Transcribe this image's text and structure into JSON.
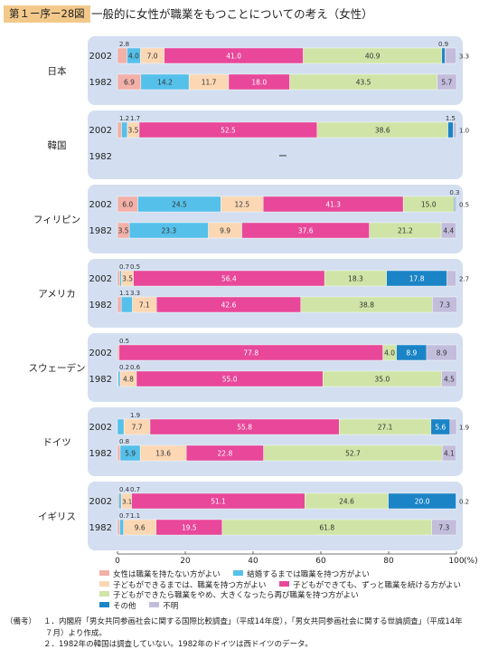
{
  "header": {
    "figure_label": "第１ー序ー28図",
    "title": "一般的に女性が職業をもつことについての考え（女性）"
  },
  "chart_data": {
    "type": "bar",
    "orientation": "horizontal-stacked-100",
    "categories_legend": [
      "女性は職業を持たない方がよい",
      "結婚するまでは職業を持つ方がよい",
      "子どもができるまでは、職業を持つ方がよい",
      "子どもができても、ずっと職業を続ける方がよい",
      "子どもができたら職業をやめ、大きくなったら再び職業を持つ方がよい",
      "その他",
      "不明"
    ],
    "colors": [
      "#f2b0a8",
      "#55c0ea",
      "#fbd7b4",
      "#e8479a",
      "#cfe4a6",
      "#1b84c6",
      "#c3bddc"
    ],
    "xlim": [
      0,
      100
    ],
    "xticks": [
      "0",
      "20",
      "40",
      "60",
      "80",
      "100"
    ],
    "xunit": "(%)",
    "groups": [
      {
        "country": "日本",
        "bars": [
          {
            "year": "2002",
            "values": [
              2.8,
              4.0,
              7.0,
              41.0,
              40.9,
              0.9,
              3.3
            ],
            "labels": [
              "2.8",
              "4.0",
              "7.0",
              "41.0",
              "40.9",
              "0.9",
              "3.3"
            ]
          },
          {
            "year": "1982",
            "values": [
              6.9,
              14.2,
              11.7,
              18.0,
              43.5,
              0.0,
              5.7
            ],
            "labels": [
              "6.9",
              "14.2",
              "11.7",
              "18.0",
              "43.5",
              "",
              "5.7"
            ]
          }
        ]
      },
      {
        "country": "韓国",
        "bars": [
          {
            "year": "2002",
            "values": [
              1.2,
              1.7,
              3.5,
              52.5,
              38.6,
              1.5,
              1.0
            ],
            "labels": [
              "1.2",
              "1.7",
              "3.5",
              "52.5",
              "38.6",
              "1.5",
              "1.0"
            ]
          },
          {
            "year": "1982",
            "values": [],
            "labels": [],
            "na_mark": "ー"
          }
        ]
      },
      {
        "country": "フィリピン",
        "bars": [
          {
            "year": "2002",
            "values": [
              6.0,
              24.5,
              12.5,
              41.3,
              15.0,
              0.3,
              0.5
            ],
            "labels": [
              "6.0",
              "24.5",
              "12.5",
              "41.3",
              "15.0",
              "0.3",
              "0.5"
            ]
          },
          {
            "year": "1982",
            "values": [
              3.5,
              23.3,
              9.9,
              37.6,
              21.2,
              0.0,
              4.4
            ],
            "labels": [
              "3.5",
              "23.3",
              "9.9",
              "37.6",
              "21.2",
              "",
              "4.4"
            ]
          }
        ]
      },
      {
        "country": "アメリカ",
        "bars": [
          {
            "year": "2002",
            "values": [
              0.7,
              0.5,
              3.5,
              56.4,
              18.3,
              17.8,
              2.7
            ],
            "labels": [
              "0.7",
              "0.5",
              "3.5",
              "56.4",
              "18.3",
              "17.8",
              "2.7"
            ]
          },
          {
            "year": "1982",
            "values": [
              1.1,
              3.3,
              7.1,
              42.6,
              38.8,
              0.0,
              7.3
            ],
            "labels": [
              "1.1",
              "3.3",
              "7.1",
              "42.6",
              "38.8",
              "",
              "7.3"
            ]
          }
        ]
      },
      {
        "country": "スウェーデン",
        "bars": [
          {
            "year": "2002",
            "values": [
              0.5,
              0.0,
              0.0,
              77.8,
              4.0,
              8.9,
              8.9
            ],
            "labels": [
              "0.5",
              "",
              "",
              "77.8",
              "4.0",
              "8.9",
              "8.9"
            ]
          },
          {
            "year": "1982",
            "values": [
              0.2,
              0.6,
              4.8,
              55.0,
              35.0,
              0.0,
              4.5
            ],
            "labels": [
              "0.2",
              "0.6",
              "4.8",
              "55.0",
              "35.0",
              "",
              "4.5"
            ]
          }
        ]
      },
      {
        "country": "ドイツ",
        "bars": [
          {
            "year": "2002",
            "values": [
              0.0,
              1.9,
              7.7,
              55.8,
              27.1,
              5.6,
              1.9
            ],
            "labels": [
              "",
              "1.9",
              "7.7",
              "55.8",
              "27.1",
              "5.6",
              "1.9"
            ]
          },
          {
            "year": "1982",
            "values": [
              0.8,
              5.9,
              13.6,
              22.8,
              52.7,
              0.0,
              4.1
            ],
            "labels": [
              "0.8",
              "5.9",
              "13.6",
              "22.8",
              "52.7",
              "",
              "4.1"
            ]
          }
        ]
      },
      {
        "country": "イギリス",
        "bars": [
          {
            "year": "2002",
            "values": [
              0.4,
              0.7,
              3.1,
              51.1,
              24.6,
              20.0,
              0.2
            ],
            "labels": [
              "0.4",
              "0.7",
              "3.1",
              "51.1",
              "24.6",
              "20.0",
              "0.2"
            ]
          },
          {
            "year": "1982",
            "values": [
              0.7,
              1.1,
              9.6,
              19.5,
              61.8,
              0.0,
              7.3
            ],
            "labels": [
              "0.7",
              "1.1",
              "9.6",
              "19.5",
              "61.8",
              "",
              "7.3"
            ]
          }
        ]
      }
    ]
  },
  "notes": {
    "label": "（備考）",
    "lines": [
      "１．内閣府「男女共同参画社会に関する国際比較調査」（平成14年度），「男女共同参画社会に関する世論調査」（平成14年",
      "７月）より作成。",
      "２．1982年の韓国は調査していない。1982年のドイツは西ドイツのデータ。"
    ]
  }
}
